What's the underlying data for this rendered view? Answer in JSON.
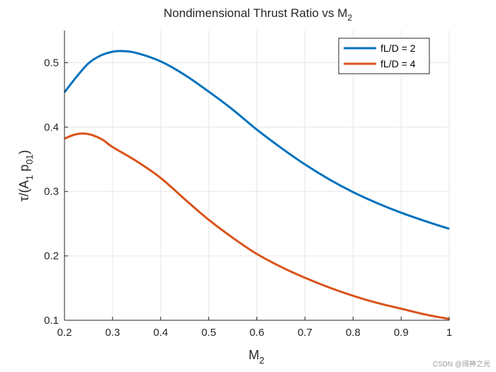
{
  "chart_data": {
    "type": "line",
    "title": "Nondimensional Thrust Ratio vs M",
    "title_subscript": "2",
    "xlabel": "M",
    "xlabel_subscript": "2",
    "ylabel_parts": [
      "τ/(A",
      "1",
      " p",
      "01",
      ")"
    ],
    "xlim": [
      0.2,
      1.0
    ],
    "ylim": [
      0.1,
      0.55
    ],
    "xticks": [
      0.2,
      0.3,
      0.4,
      0.5,
      0.6,
      0.7,
      0.8,
      0.9,
      1.0
    ],
    "xtick_labels": [
      "0.2",
      "0.3",
      "0.4",
      "0.5",
      "0.6",
      "0.7",
      "0.8",
      "0.9",
      "1"
    ],
    "yticks": [
      0.1,
      0.2,
      0.3,
      0.4,
      0.5
    ],
    "ytick_labels": [
      "0.1",
      "0.2",
      "0.3",
      "0.4",
      "0.5"
    ],
    "grid": true,
    "legend_position": "top-right",
    "series": [
      {
        "name": "fL/D = 2",
        "color": "#0072BD",
        "x": [
          0.2,
          0.225,
          0.25,
          0.275,
          0.3,
          0.32,
          0.35,
          0.4,
          0.45,
          0.5,
          0.55,
          0.6,
          0.65,
          0.7,
          0.75,
          0.8,
          0.85,
          0.9,
          0.95,
          1.0
        ],
        "y": [
          0.454,
          0.478,
          0.499,
          0.511,
          0.517,
          0.518,
          0.515,
          0.502,
          0.481,
          0.455,
          0.427,
          0.396,
          0.368,
          0.342,
          0.319,
          0.299,
          0.282,
          0.267,
          0.254,
          0.242
        ]
      },
      {
        "name": "fL/D = 4",
        "color": "#D95319",
        "x": [
          0.2,
          0.22,
          0.24,
          0.26,
          0.28,
          0.3,
          0.35,
          0.4,
          0.45,
          0.5,
          0.55,
          0.6,
          0.65,
          0.7,
          0.75,
          0.8,
          0.85,
          0.9,
          0.95,
          1.0
        ],
        "y": [
          0.382,
          0.388,
          0.39,
          0.387,
          0.38,
          0.369,
          0.347,
          0.321,
          0.288,
          0.256,
          0.228,
          0.203,
          0.183,
          0.166,
          0.151,
          0.138,
          0.127,
          0.118,
          0.109,
          0.102
        ]
      }
    ]
  },
  "watermark": "CSDN @阔神之光"
}
